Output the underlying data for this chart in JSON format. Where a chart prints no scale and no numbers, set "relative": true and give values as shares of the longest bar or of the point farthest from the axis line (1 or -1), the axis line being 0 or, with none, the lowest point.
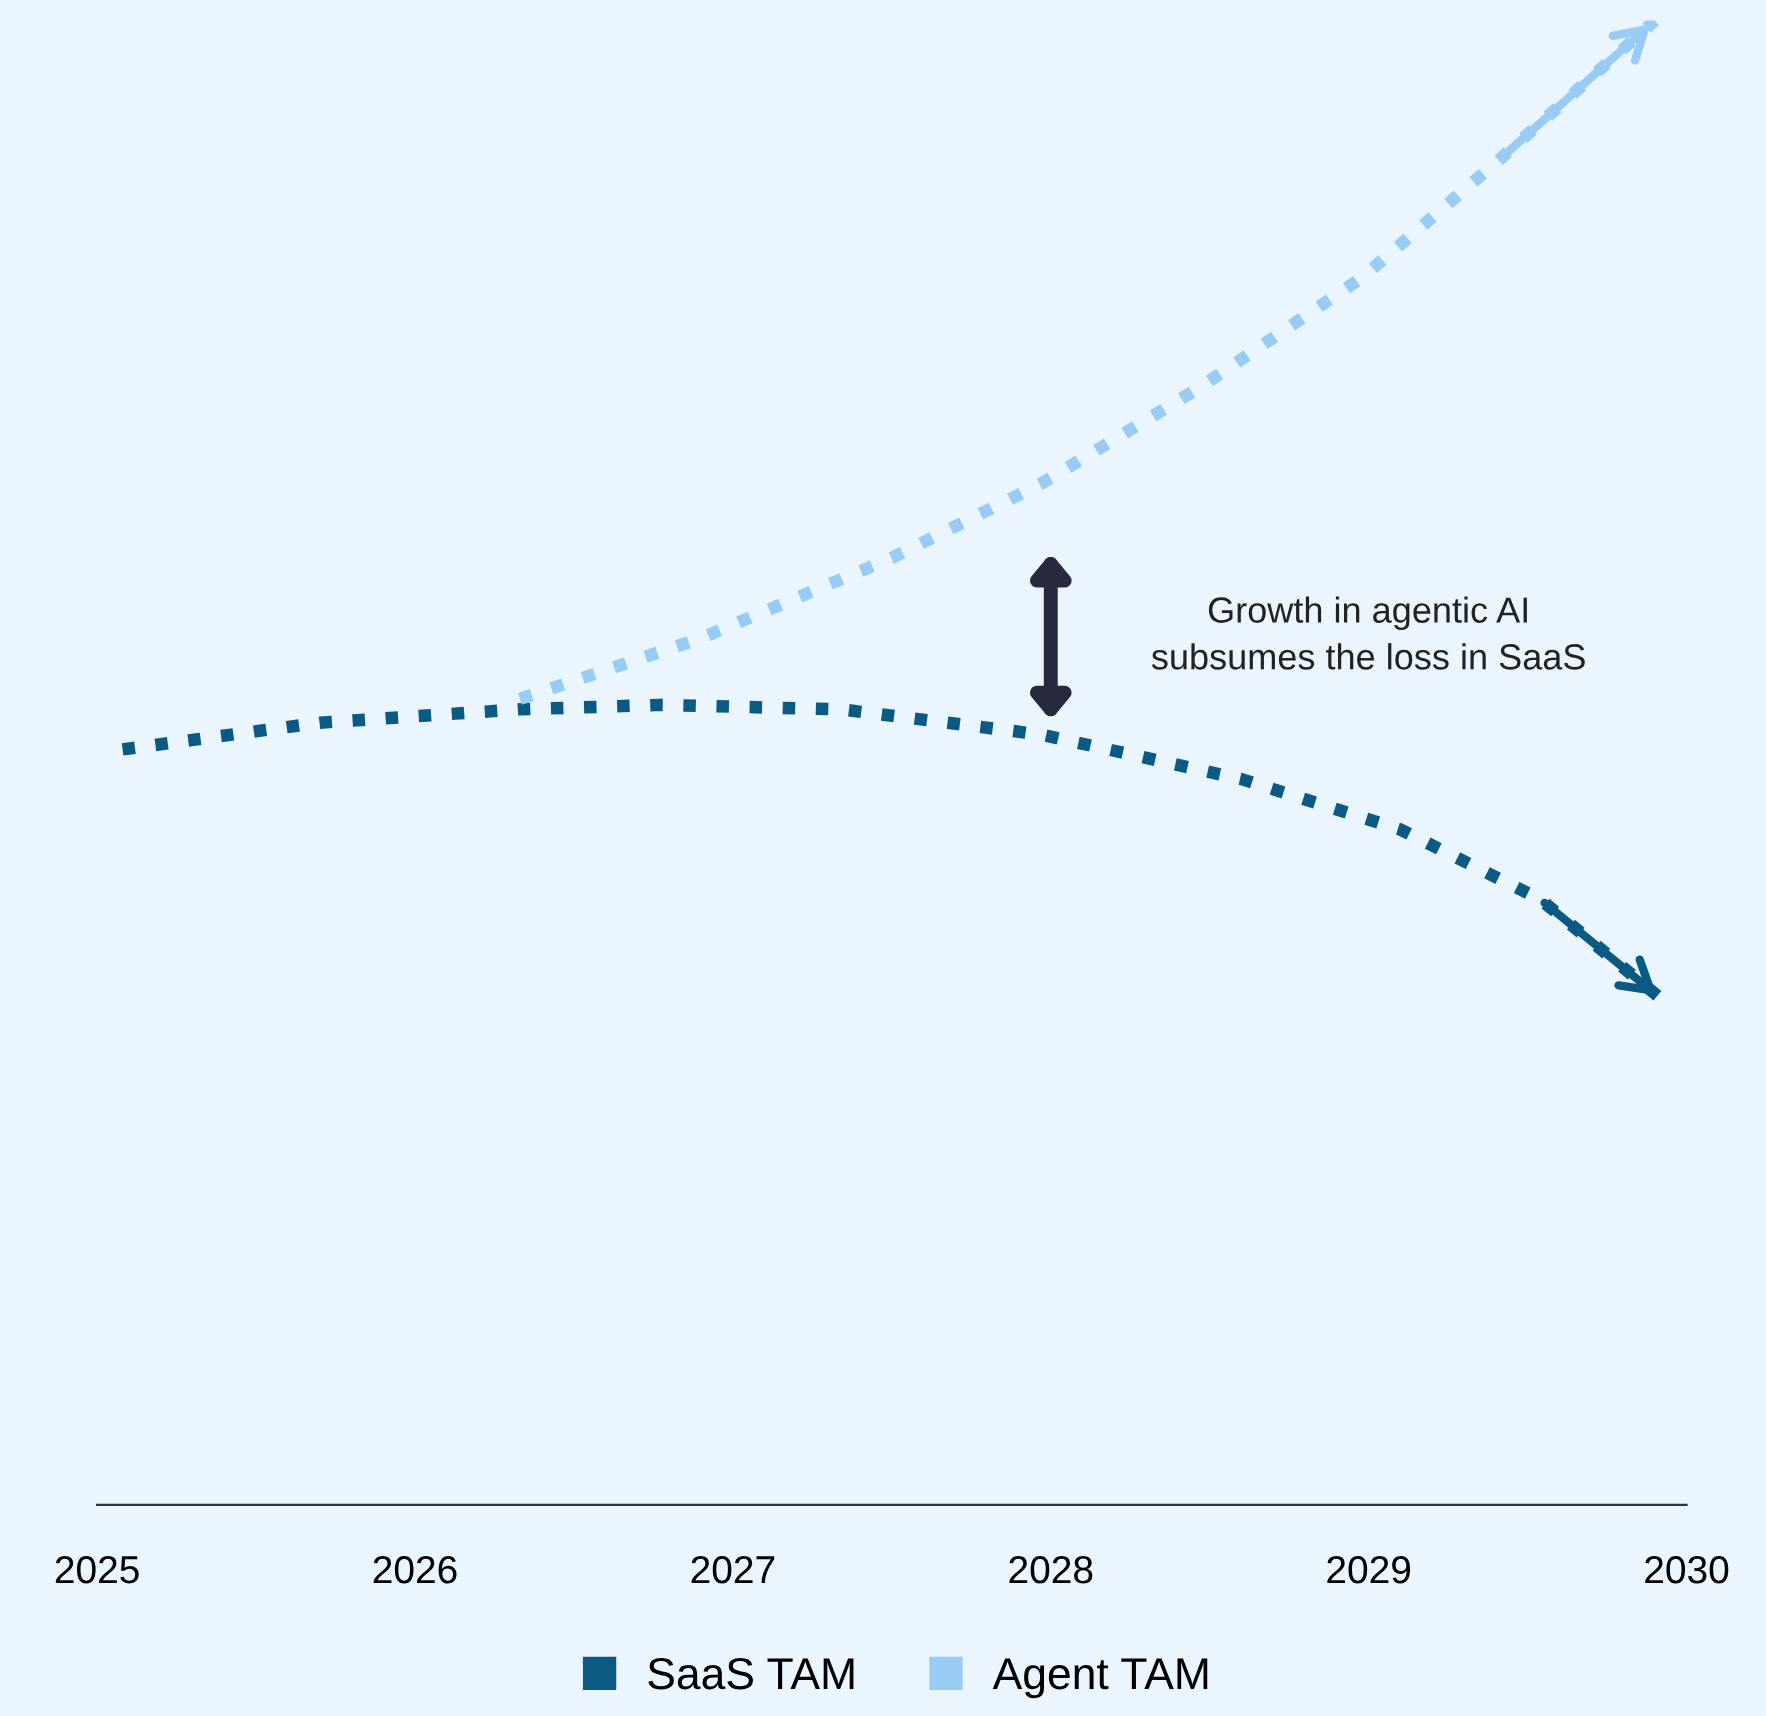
{
  "chart_data": {
    "type": "line",
    "relative": true,
    "xlim": [
      2025,
      2030
    ],
    "xticks": [
      2025,
      2026,
      2027,
      2028,
      2029,
      2030
    ],
    "series": [
      {
        "name": "SaaS TAM",
        "color": "#0b5a84",
        "x": [
          2025.08,
          2025.7,
          2026.33,
          2026.77,
          2027.34,
          2027.97,
          2028.6,
          2029.1,
          2029.54,
          2029.92
        ],
        "values": [
          0.509,
          0.527,
          0.536,
          0.539,
          0.536,
          0.519,
          0.489,
          0.455,
          0.408,
          0.341
        ]
      },
      {
        "name": "Agent TAM",
        "color": "#99ccf5",
        "x": [
          2026.33,
          2026.9,
          2027.5,
          2027.97,
          2028.47,
          2028.98,
          2029.42,
          2029.9
        ],
        "values": [
          0.543,
          0.584,
          0.638,
          0.688,
          0.753,
          0.827,
          0.908,
          1
        ]
      }
    ],
    "line_style": "dotted",
    "marker": "none",
    "grid": false,
    "legend": "bottom",
    "annotations": [
      "Growth in agentic AI\nsubsumes the loss in SaaS"
    ]
  }
}
